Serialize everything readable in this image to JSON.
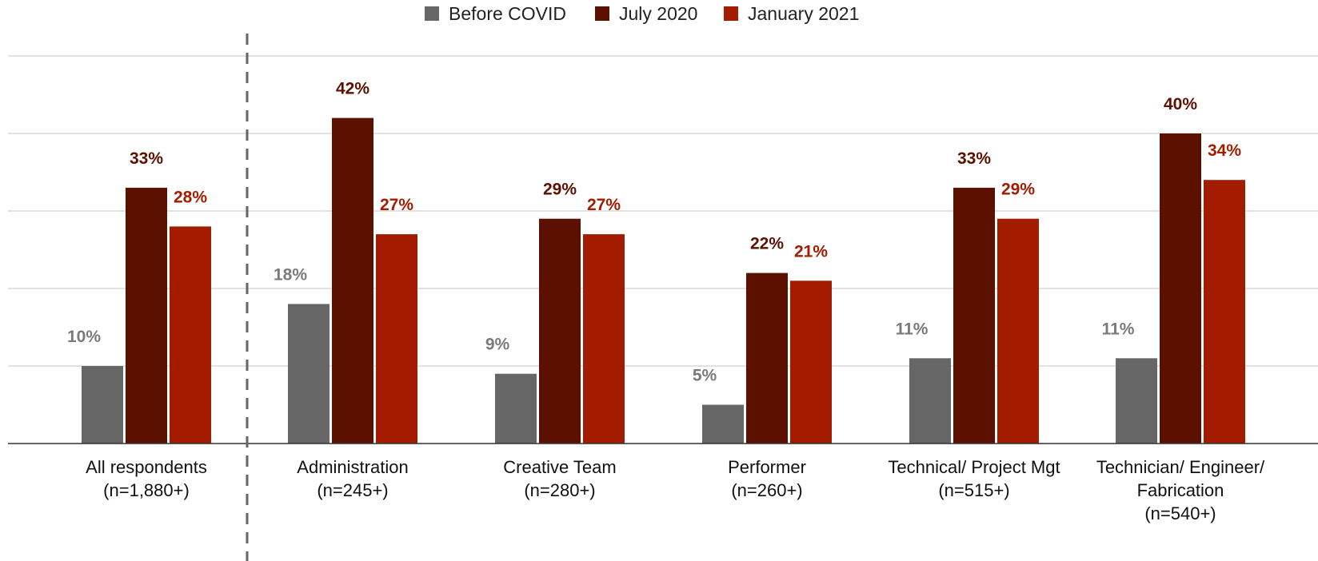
{
  "chart_data": {
    "type": "bar",
    "categories": [
      {
        "lines": [
          "All respondents",
          "(n=1,880+)"
        ]
      },
      {
        "lines": [
          "Administration",
          "(n=245+)"
        ]
      },
      {
        "lines": [
          "Creative Team",
          "(n=280+)"
        ]
      },
      {
        "lines": [
          "Performer",
          "(n=260+)"
        ]
      },
      {
        "lines": [
          "Technical/ Project Mgt",
          "(n=515+)"
        ]
      },
      {
        "lines": [
          "Technician/ Engineer/",
          "Fabrication",
          "(n=540+)"
        ]
      }
    ],
    "series": [
      {
        "name": "Before COVID",
        "color": "#666666",
        "label_color": "#7a7a7a",
        "values": [
          10,
          18,
          9,
          5,
          11,
          11
        ],
        "labels": [
          "10%",
          "18%",
          "9%",
          "5%",
          "11%",
          "11%"
        ]
      },
      {
        "name": "July 2020",
        "color": "#5c1100",
        "label_color": "#5c1100",
        "values": [
          33,
          42,
          29,
          22,
          33,
          40
        ],
        "labels": [
          "33%",
          "42%",
          "29%",
          "22%",
          "33%",
          "40%"
        ]
      },
      {
        "name": "January 2021",
        "color": "#a31c00",
        "label_color": "#a31c00",
        "values": [
          28,
          27,
          27,
          21,
          29,
          34
        ],
        "labels": [
          "28%",
          "27%",
          "27%",
          "21%",
          "29%",
          "34%"
        ]
      }
    ],
    "ylim": [
      0,
      50
    ],
    "grid": true,
    "legend_position": "top-center",
    "divider_after_category": 0
  }
}
